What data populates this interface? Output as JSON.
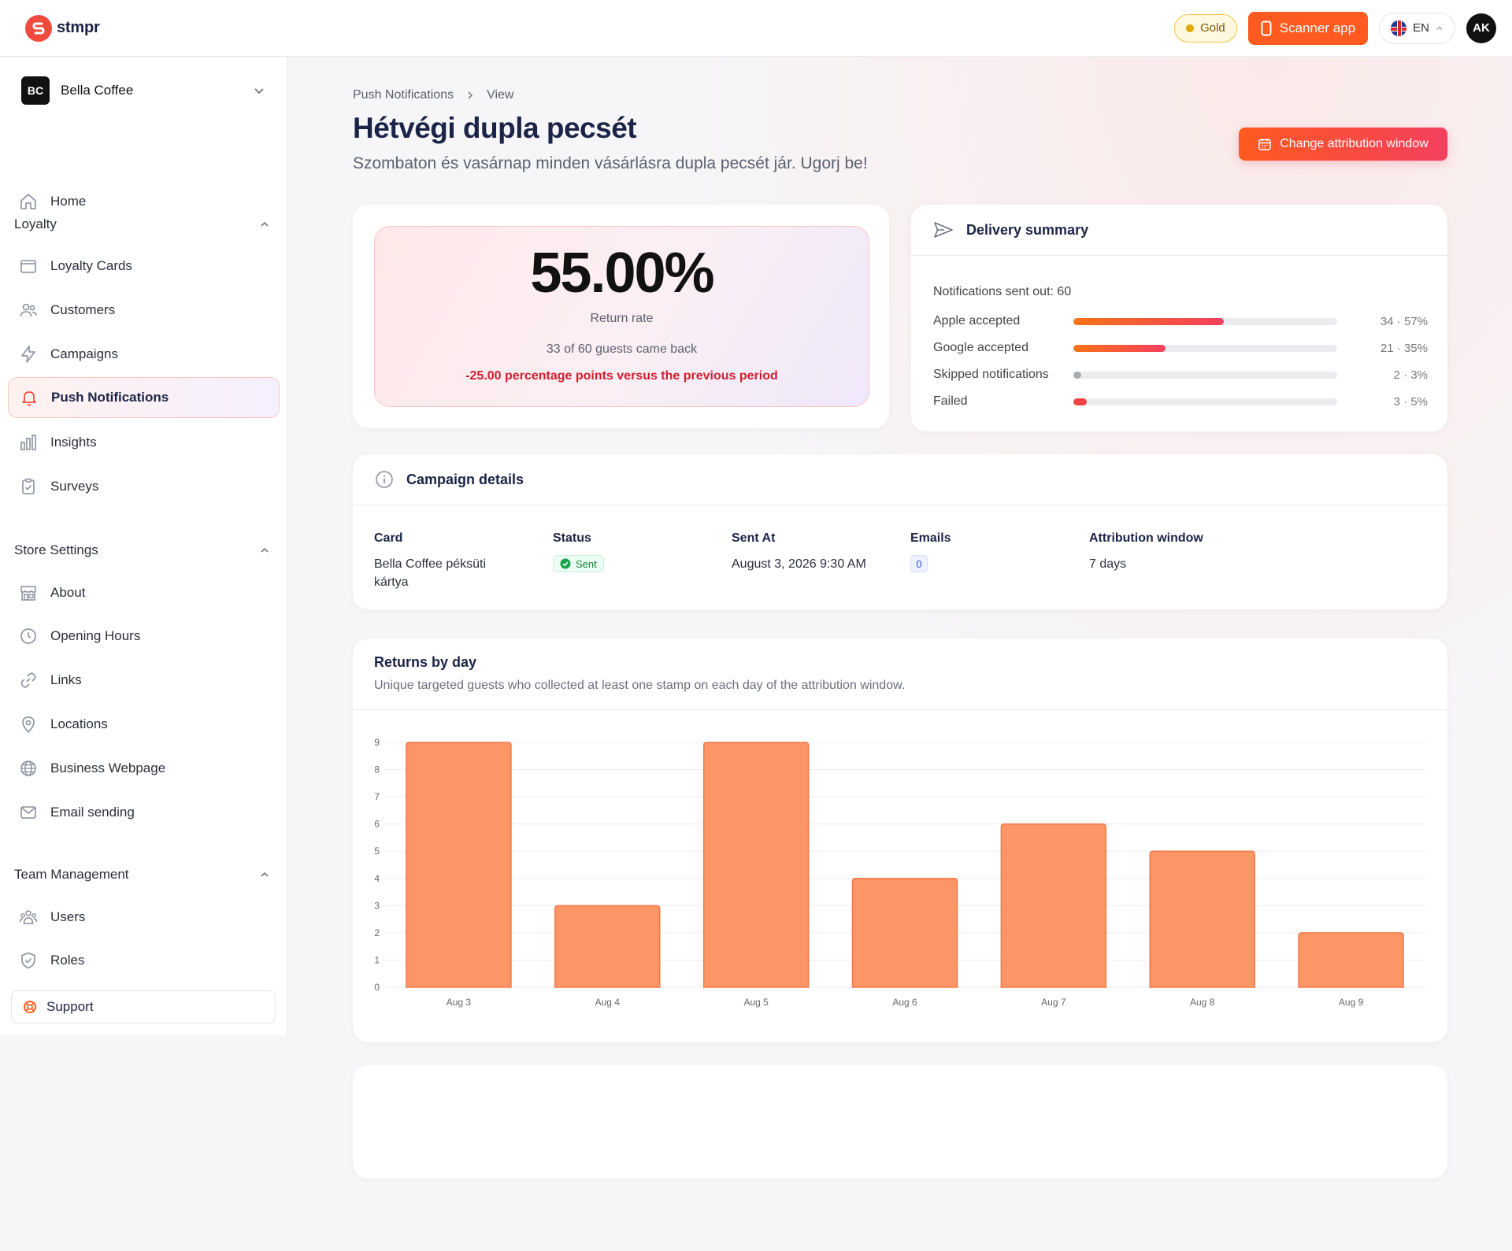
{
  "topbar": {
    "brand": "stmpr",
    "plan": "Gold",
    "scanner_label": "Scanner app",
    "language": "EN",
    "avatar_initials": "AK",
    "colors": {
      "brand": "#f04a3d",
      "accent": "#ff5a1f"
    }
  },
  "sidebar": {
    "store": {
      "initials": "BC",
      "name": "Bella Coffee"
    },
    "home": "Home",
    "sections": {
      "loyalty": "Loyalty",
      "store_settings": "Store Settings",
      "team_management": "Team Management"
    },
    "loyalty_items": [
      {
        "label": "Loyalty Cards",
        "icon": "wallet-icon"
      },
      {
        "label": "Customers",
        "icon": "users-icon"
      },
      {
        "label": "Campaigns",
        "icon": "lightning-icon"
      },
      {
        "label": "Push Notifications",
        "icon": "bell-icon",
        "active": true
      },
      {
        "label": "Insights",
        "icon": "bar-chart-icon"
      },
      {
        "label": "Surveys",
        "icon": "clipboard-icon"
      }
    ],
    "store_items": [
      {
        "label": "About",
        "icon": "store-icon"
      },
      {
        "label": "Opening Hours",
        "icon": "clock-icon"
      },
      {
        "label": "Links",
        "icon": "link-icon"
      },
      {
        "label": "Locations",
        "icon": "pin-icon"
      },
      {
        "label": "Business Webpage",
        "icon": "globe-icon"
      },
      {
        "label": "Email sending",
        "icon": "mail-icon"
      }
    ],
    "team_items": [
      {
        "label": "Users",
        "icon": "team-icon"
      },
      {
        "label": "Roles",
        "icon": "shield-icon"
      }
    ],
    "support": "Support"
  },
  "page": {
    "breadcrumb": [
      "Push Notifications",
      "View"
    ],
    "title": "Hétvégi dupla pecsét",
    "subtitle": "Szombaton és vasárnap minden vásárlásra dupla pecsét jár. Ugorj be!",
    "attribution_button": "Change attribution window"
  },
  "return_rate": {
    "value": "55.00%",
    "label": "Return rate",
    "guests": "33 of 60 guests came back",
    "delta": "-25.00 percentage points versus the previous period"
  },
  "delivery": {
    "title": "Delivery summary",
    "total": "Notifications sent out: 60",
    "rows": [
      {
        "label": "Apple accepted",
        "value": "34 · 57%",
        "fraction": 0.57,
        "tone": "gradient"
      },
      {
        "label": "Google accepted",
        "value": "21 · 35%",
        "fraction": 0.35,
        "tone": "gradient"
      },
      {
        "label": "Skipped notifications",
        "value": "2 · 3%",
        "fraction": 0.03,
        "tone": "grey"
      },
      {
        "label": "Failed",
        "value": "3 · 5%",
        "fraction": 0.05,
        "tone": "red"
      }
    ]
  },
  "campaign": {
    "title": "Campaign details",
    "card": {
      "label": "Card",
      "value": "Bella Coffee péksüti kártya"
    },
    "status": {
      "label": "Status",
      "value": "Sent"
    },
    "sent_at": {
      "label": "Sent At",
      "value": "August 3, 2026 9:30 AM"
    },
    "emails": {
      "label": "Emails",
      "value": "0"
    },
    "attribution": {
      "label": "Attribution window",
      "value": "7 days"
    }
  },
  "returns": {
    "title": "Returns by day",
    "subtitle": "Unique targeted guests who collected at least one stamp on each day of the attribution window."
  },
  "chart_data": {
    "type": "bar",
    "categories": [
      "Aug 3",
      "Aug 4",
      "Aug 5",
      "Aug 6",
      "Aug 7",
      "Aug 8",
      "Aug 9"
    ],
    "values": [
      9,
      3,
      9,
      4,
      6,
      5,
      2
    ],
    "ylim": [
      0,
      9
    ],
    "yticks": [
      0,
      1,
      2,
      3,
      4,
      5,
      6,
      7,
      8,
      9
    ],
    "grid": true,
    "bar_color": "#fd9667",
    "bar_stroke": "#f37848"
  }
}
